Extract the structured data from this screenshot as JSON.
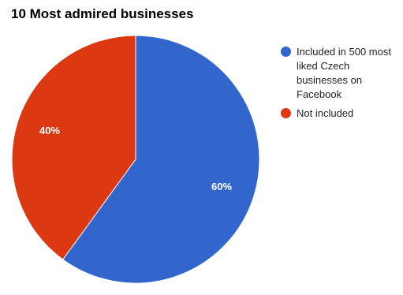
{
  "chart_data": {
    "type": "pie",
    "title": "10 Most admired businesses",
    "slices": [
      {
        "label": "Included in 500 most liked Czech businesses on Facebook",
        "value": 60,
        "display": "60%",
        "color": "#3366cc"
      },
      {
        "label": "Not included",
        "value": 40,
        "display": "40%",
        "color": "#dc3912"
      }
    ],
    "legend_position": "right"
  }
}
